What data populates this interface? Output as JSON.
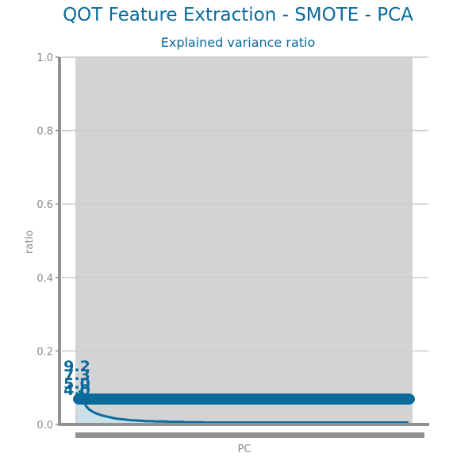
{
  "title": "QOT Feature Extraction - SMOTE - PCA",
  "colors": {
    "accent": "#0a6a9c",
    "plot_background": "#d2d3d5",
    "axis": "#929292",
    "gridline": "#cccccc",
    "text_muted": "#8a8a8a",
    "bar": "#c9e2ea"
  },
  "chart_data": {
    "type": "line",
    "title": "Explained variance ratio",
    "xlabel": "PC",
    "ylabel": "ratio",
    "ylim": [
      0,
      1
    ],
    "yticks": [
      "0.0",
      "0.2",
      "0.4",
      "0.6",
      "0.8",
      "1.0"
    ],
    "grid": true,
    "n_components": 100,
    "x": [
      1,
      2,
      3,
      4,
      5,
      6,
      7,
      8,
      9,
      10,
      11,
      12,
      13,
      14,
      15,
      16,
      17,
      18,
      19,
      20,
      21,
      22,
      23,
      24,
      25,
      26,
      27,
      28,
      29,
      30,
      31,
      32,
      33,
      34,
      35,
      36,
      37,
      38,
      39,
      40,
      41,
      42,
      43,
      44,
      45,
      46,
      47,
      48,
      49,
      50,
      51,
      52,
      53,
      54,
      55,
      56,
      57,
      58,
      59,
      60,
      61,
      62,
      63,
      64,
      65,
      66,
      67,
      68,
      69,
      70,
      71,
      72,
      73,
      74,
      75,
      76,
      77,
      78,
      79,
      80,
      81,
      82,
      83,
      84,
      85,
      86,
      87,
      88,
      89,
      90,
      91,
      92,
      93,
      94,
      95,
      96,
      97,
      98,
      99,
      100
    ],
    "series": [
      {
        "values": [
          0.092,
          0.073,
          0.05,
          0.04,
          0.035,
          0.03,
          0.027,
          0.024,
          0.022,
          0.02,
          0.018,
          0.016,
          0.015,
          0.014,
          0.013,
          0.012,
          0.011,
          0.011,
          0.01,
          0.01,
          0.009,
          0.009,
          0.009,
          0.008,
          0.008,
          0.008,
          0.008,
          0.007,
          0.007,
          0.007,
          0.007,
          0.007,
          0.006,
          0.006,
          0.006,
          0.006,
          0.006,
          0.006,
          0.005,
          0.005,
          0.005,
          0.005,
          0.005,
          0.005,
          0.005,
          0.005,
          0.005,
          0.005,
          0.005,
          0.005,
          0.005,
          0.005,
          0.005,
          0.005,
          0.005,
          0.005,
          0.005,
          0.005,
          0.005,
          0.005,
          0.005,
          0.005,
          0.005,
          0.005,
          0.005,
          0.005,
          0.005,
          0.005,
          0.005,
          0.005,
          0.005,
          0.005,
          0.005,
          0.005,
          0.005,
          0.005,
          0.005,
          0.005,
          0.005,
          0.005,
          0.005,
          0.005,
          0.005,
          0.005,
          0.005,
          0.005,
          0.005,
          0.005,
          0.005,
          0.005,
          0.005,
          0.005,
          0.005,
          0.005,
          0.005,
          0.005,
          0.005,
          0.005,
          0.005,
          0.005
        ]
      }
    ],
    "annotations": [
      "9.2",
      "7.3",
      "5.0",
      "4.0"
    ]
  }
}
